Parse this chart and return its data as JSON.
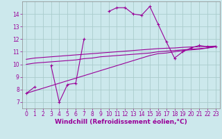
{
  "xlabel": "Windchill (Refroidissement éolien,°C)",
  "bg_color": "#cce8ec",
  "grid_color": "#aacccc",
  "line_color": "#990099",
  "x_hours": [
    0,
    1,
    2,
    3,
    4,
    5,
    6,
    7,
    8,
    9,
    10,
    11,
    12,
    13,
    14,
    15,
    16,
    17,
    18,
    19,
    20,
    21,
    22,
    23
  ],
  "main_y": [
    7.7,
    8.2,
    null,
    9.9,
    7.0,
    8.4,
    8.5,
    12.0,
    null,
    null,
    14.2,
    14.5,
    14.5,
    14.0,
    13.9,
    14.6,
    13.2,
    11.8,
    10.5,
    11.0,
    11.3,
    11.5,
    11.4,
    11.4
  ],
  "line_low_y": [
    7.7,
    7.9,
    8.1,
    8.3,
    8.5,
    8.7,
    8.9,
    9.1,
    9.3,
    9.5,
    9.7,
    9.9,
    10.1,
    10.3,
    10.5,
    10.7,
    10.85,
    10.9,
    11.0,
    11.1,
    11.15,
    11.2,
    11.3,
    11.4
  ],
  "line_mid_y": [
    10.0,
    10.1,
    10.15,
    10.2,
    10.25,
    10.3,
    10.35,
    10.45,
    10.5,
    10.6,
    10.65,
    10.7,
    10.75,
    10.8,
    10.85,
    10.9,
    11.0,
    11.05,
    11.1,
    11.15,
    11.2,
    11.25,
    11.3,
    11.4
  ],
  "line_high_y": [
    10.4,
    10.5,
    10.55,
    10.6,
    10.65,
    10.7,
    10.75,
    10.8,
    10.85,
    10.9,
    10.95,
    11.0,
    11.05,
    11.1,
    11.15,
    11.2,
    11.25,
    11.28,
    11.3,
    11.35,
    11.38,
    11.4,
    11.42,
    11.45
  ],
  "ylim": [
    6.5,
    15.0
  ],
  "xlim": [
    -0.5,
    23.5
  ],
  "xticks": [
    0,
    1,
    2,
    3,
    4,
    5,
    6,
    7,
    8,
    9,
    10,
    11,
    12,
    13,
    14,
    15,
    16,
    17,
    18,
    19,
    20,
    21,
    22,
    23
  ],
  "yticks": [
    7,
    8,
    9,
    10,
    11,
    12,
    13,
    14
  ],
  "tick_fontsize": 5.5,
  "xlabel_fontsize": 6.5,
  "marker_size": 2.5,
  "linewidth": 0.8
}
